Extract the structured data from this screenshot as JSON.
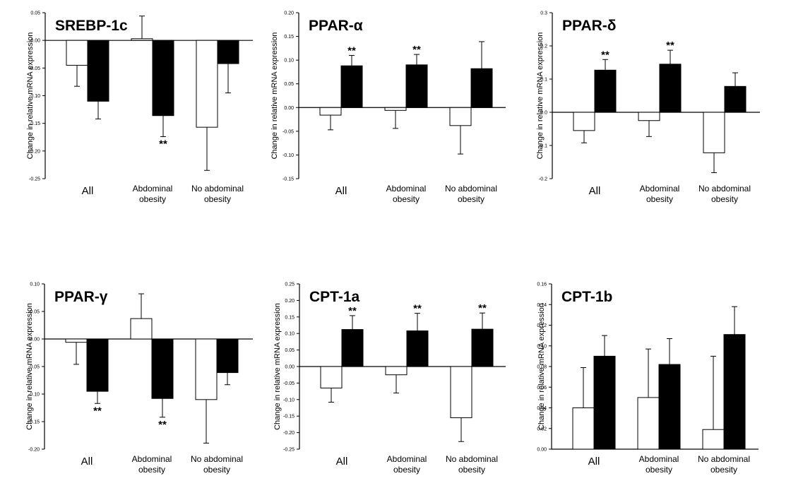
{
  "chart_data": [
    {
      "type": "bar",
      "title": "SREBP-1c",
      "ylabel": "Change in relative mRNA expression",
      "categories": [
        "All",
        "Abdominal obesity",
        "No abdominal obesity"
      ],
      "ylim": [
        -0.25,
        0.05
      ],
      "yticks": [
        "0.05",
        "0.00",
        "-0.05",
        "-0.10",
        "-0.15",
        "-0.20",
        "-0.25"
      ],
      "yticks_values": [
        0.05,
        0.0,
        -0.05,
        -0.1,
        -0.15,
        -0.2,
        -0.25
      ],
      "series": [
        {
          "fill": "#ffffff",
          "values": [
            -0.045,
            0.003,
            -0.157
          ],
          "errors": [
            0.038,
            0.041,
            0.078
          ],
          "stars": [
            "",
            "",
            ""
          ]
        },
        {
          "fill": "#000000",
          "values": [
            -0.11,
            -0.136,
            -0.042
          ],
          "errors": [
            0.032,
            0.038,
            0.053
          ],
          "stars": [
            "",
            "**",
            ""
          ]
        }
      ]
    },
    {
      "type": "bar",
      "title": "PPAR-α",
      "ylabel": "Change in relative mRNA expression",
      "categories": [
        "All",
        "Abdominal obesity",
        "No abdominal obesity"
      ],
      "ylim": [
        -0.15,
        0.2
      ],
      "yticks": [
        "0.20",
        "0.15",
        "0.10",
        "0.05",
        "0.00",
        "-0.05",
        "-0.10",
        "-0.15"
      ],
      "yticks_values": [
        0.2,
        0.15,
        0.1,
        0.05,
        0.0,
        -0.05,
        -0.1,
        -0.15
      ],
      "series": [
        {
          "fill": "#ffffff",
          "values": [
            -0.016,
            -0.006,
            -0.038
          ],
          "errors": [
            0.031,
            0.038,
            0.06
          ],
          "stars": [
            "",
            "",
            ""
          ]
        },
        {
          "fill": "#000000",
          "values": [
            0.088,
            0.09,
            0.082
          ],
          "errors": [
            0.022,
            0.022,
            0.057
          ],
          "stars": [
            "**",
            "**",
            ""
          ]
        }
      ]
    },
    {
      "type": "bar",
      "title": "PPAR-δ",
      "ylabel": "Change in relative mRNA expression",
      "categories": [
        "All",
        "Abdominal obesity",
        "No abdominal obesity"
      ],
      "ylim": [
        -0.2,
        0.3
      ],
      "yticks": [
        "0.3",
        "0.2",
        "0.1",
        "0.0",
        "-0.1",
        "-0.2"
      ],
      "yticks_values": [
        0.3,
        0.2,
        0.1,
        0.0,
        -0.1,
        -0.2
      ],
      "series": [
        {
          "fill": "#ffffff",
          "values": [
            -0.055,
            -0.025,
            -0.122
          ],
          "errors": [
            0.037,
            0.048,
            0.06
          ],
          "stars": [
            "",
            "",
            ""
          ]
        },
        {
          "fill": "#000000",
          "values": [
            0.127,
            0.145,
            0.078
          ],
          "errors": [
            0.032,
            0.042,
            0.041
          ],
          "stars": [
            "**",
            "**",
            ""
          ]
        }
      ]
    },
    {
      "type": "bar",
      "title": "PPAR-γ",
      "ylabel": "Change in relative mRNA expression",
      "categories": [
        "All",
        "Abdominal obesity",
        "No abdominal obesity"
      ],
      "ylim": [
        -0.2,
        0.1
      ],
      "yticks": [
        "0.10",
        "0.05",
        "0.00",
        "-0.05",
        "-0.10",
        "-0.15",
        "-0.20"
      ],
      "yticks_values": [
        0.1,
        0.05,
        0.0,
        -0.05,
        -0.1,
        -0.15,
        -0.2
      ],
      "series": [
        {
          "fill": "#ffffff",
          "values": [
            -0.006,
            0.037,
            -0.11
          ],
          "errors": [
            0.04,
            0.045,
            0.079
          ],
          "stars": [
            "",
            "",
            ""
          ]
        },
        {
          "fill": "#000000",
          "values": [
            -0.095,
            -0.108,
            -0.061
          ],
          "errors": [
            0.022,
            0.034,
            0.022
          ],
          "stars": [
            "**",
            "**",
            ""
          ]
        }
      ]
    },
    {
      "type": "bar",
      "title": "CPT-1a",
      "ylabel": "Change in relative mRNA expression",
      "categories": [
        "All",
        "Abdominal obesity",
        "No abdominal obesity"
      ],
      "ylim": [
        -0.25,
        0.25
      ],
      "yticks": [
        "0.25",
        "0.20",
        "0.15",
        "0.10",
        "0.05",
        "0.00",
        "-0.05",
        "-0.10",
        "-0.15",
        "-0.20",
        "-0.25"
      ],
      "yticks_values": [
        0.25,
        0.2,
        0.15,
        0.1,
        0.05,
        0.0,
        -0.05,
        -0.1,
        -0.15,
        -0.2,
        -0.25
      ],
      "series": [
        {
          "fill": "#ffffff",
          "values": [
            -0.065,
            -0.025,
            -0.155
          ],
          "errors": [
            0.043,
            0.055,
            0.072
          ],
          "stars": [
            "",
            "",
            ""
          ]
        },
        {
          "fill": "#000000",
          "values": [
            0.112,
            0.108,
            0.113
          ],
          "errors": [
            0.042,
            0.053,
            0.049
          ],
          "stars": [
            "**",
            "**",
            "**"
          ]
        }
      ]
    },
    {
      "type": "bar",
      "title": "CPT-1b",
      "ylabel": "Change in relative mRNA expression",
      "categories": [
        "All",
        "Abdominal obesity",
        "No abdominal obesity"
      ],
      "ylim": [
        0.0,
        0.16
      ],
      "yticks": [
        "0.16",
        "0.14",
        "0.12",
        "0.10",
        "0.08",
        "0.06",
        "0.04",
        "0.02",
        "0.00"
      ],
      "yticks_values": [
        0.16,
        0.14,
        0.12,
        0.1,
        0.08,
        0.06,
        0.04,
        0.02,
        0.0
      ],
      "series": [
        {
          "fill": "#ffffff",
          "values": [
            0.04,
            0.05,
            0.019
          ],
          "errors": [
            0.039,
            0.047,
            0.071
          ],
          "stars": [
            "",
            "",
            ""
          ]
        },
        {
          "fill": "#000000",
          "values": [
            0.09,
            0.082,
            0.111
          ],
          "errors": [
            0.02,
            0.025,
            0.027
          ],
          "stars": [
            "",
            "",
            ""
          ]
        }
      ]
    }
  ],
  "category_labels": [
    [
      "All"
    ],
    [
      "Abdominal",
      "obesity"
    ],
    [
      "No abdominal",
      "obesity"
    ]
  ]
}
